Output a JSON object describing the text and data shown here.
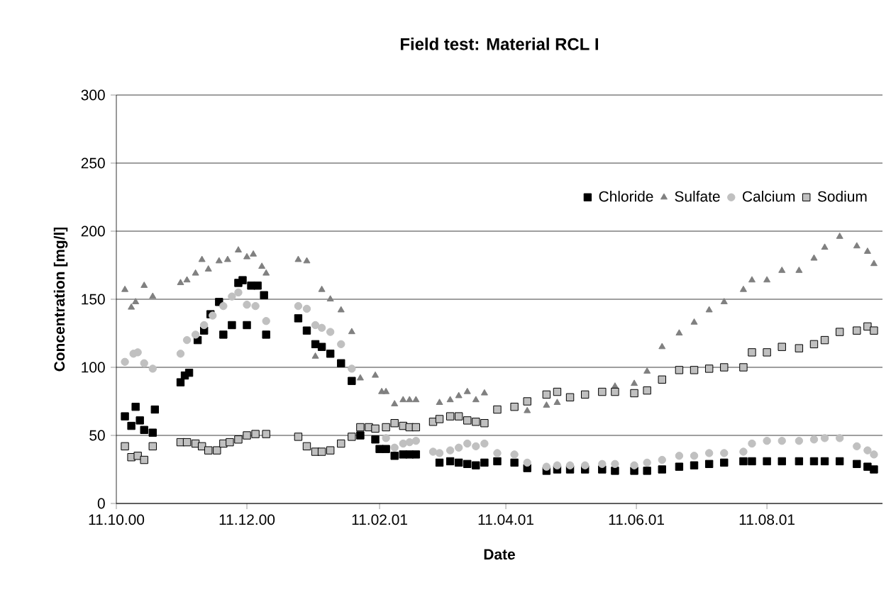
{
  "chart_data": {
    "type": "scatter",
    "title": "Field test: Material RCL I",
    "xlabel": "Date",
    "ylabel": "Concentration [mg/l]",
    "xlim": [
      "2000-10-11",
      "2001-10-04"
    ],
    "ylim": [
      0,
      300
    ],
    "yticks": [
      0,
      50,
      100,
      150,
      200,
      250,
      300
    ],
    "xticks": [
      {
        "value": "2000-10-11",
        "label": "11.10.00"
      },
      {
        "value": "2000-12-11",
        "label": "11.12.00"
      },
      {
        "value": "2001-02-11",
        "label": "11.02.01"
      },
      {
        "value": "2001-04-11",
        "label": "11.04.01"
      },
      {
        "value": "2001-06-11",
        "label": "11.06.01"
      },
      {
        "value": "2001-08-11",
        "label": "11.08.01"
      }
    ],
    "grid": "y",
    "legend": "top right",
    "series": [
      {
        "name": "Chloride",
        "color": "#000000",
        "marker": "square",
        "x": [
          "2000-10-15",
          "2000-10-18",
          "2000-10-20",
          "2000-10-22",
          "2000-10-24",
          "2000-10-28",
          "2000-10-29",
          "2000-11-10",
          "2000-11-12",
          "2000-11-14",
          "2000-11-18",
          "2000-11-21",
          "2000-11-24",
          "2000-11-28",
          "2000-11-30",
          "2000-12-04",
          "2000-12-07",
          "2000-12-09",
          "2000-12-11",
          "2000-12-13",
          "2000-12-16",
          "2000-12-19",
          "2000-12-20",
          "2001-01-04",
          "2001-01-08",
          "2001-01-12",
          "2001-01-15",
          "2001-01-19",
          "2001-01-24",
          "2001-01-29",
          "2001-02-02",
          "2001-02-09",
          "2001-02-11",
          "2001-02-14",
          "2001-02-18",
          "2001-02-22",
          "2001-02-25",
          "2001-02-28",
          "2001-03-11",
          "2001-03-16",
          "2001-03-20",
          "2001-03-24",
          "2001-03-28",
          "2001-04-01",
          "2001-04-07",
          "2001-04-15",
          "2001-04-21",
          "2001-04-30",
          "2001-05-05",
          "2001-05-11",
          "2001-05-18",
          "2001-05-26",
          "2001-06-01",
          "2001-06-10",
          "2001-06-16",
          "2001-06-23",
          "2001-07-01",
          "2001-07-08",
          "2001-07-15",
          "2001-07-22",
          "2001-07-31",
          "2001-08-04",
          "2001-08-11",
          "2001-08-18",
          "2001-08-26",
          "2001-09-02",
          "2001-09-07",
          "2001-09-14",
          "2001-09-22",
          "2001-09-27",
          "2001-09-30"
        ],
        "values": [
          64,
          57,
          71,
          61,
          54,
          52,
          69,
          89,
          94,
          96,
          120,
          127,
          139,
          148,
          124,
          131,
          162,
          164,
          131,
          160,
          160,
          153,
          124,
          136,
          127,
          117,
          115,
          110,
          103,
          90,
          50,
          47,
          40,
          40,
          35,
          36,
          36,
          36,
          30,
          31,
          30,
          29,
          28,
          30,
          31,
          30,
          26,
          24,
          25,
          25,
          25,
          25,
          24,
          24,
          24,
          25,
          27,
          28,
          29,
          30,
          31,
          31,
          31,
          31,
          31,
          31,
          31,
          31,
          29,
          27,
          25
        ]
      },
      {
        "name": "Sulfate",
        "color": "#808080",
        "marker": "triangle",
        "x": [
          "2000-10-15",
          "2000-10-18",
          "2000-10-20",
          "2000-10-24",
          "2000-10-28",
          "2000-11-10",
          "2000-11-13",
          "2000-11-17",
          "2000-11-20",
          "2000-11-23",
          "2000-11-28",
          "2000-12-02",
          "2000-12-07",
          "2000-12-11",
          "2000-12-14",
          "2000-12-18",
          "2000-12-20",
          "2001-01-04",
          "2001-01-08",
          "2001-01-12",
          "2001-01-15",
          "2001-01-19",
          "2001-01-24",
          "2001-01-29",
          "2001-02-02",
          "2001-02-09",
          "2001-02-12",
          "2001-02-14",
          "2001-02-18",
          "2001-02-22",
          "2001-02-25",
          "2001-02-28",
          "2001-03-11",
          "2001-03-16",
          "2001-03-20",
          "2001-03-24",
          "2001-03-28",
          "2001-04-01",
          "2001-04-21",
          "2001-04-30",
          "2001-05-05",
          "2001-06-01",
          "2001-06-10",
          "2001-06-16",
          "2001-06-23",
          "2001-07-01",
          "2001-07-08",
          "2001-07-15",
          "2001-07-22",
          "2001-07-31",
          "2001-08-04",
          "2001-08-11",
          "2001-08-18",
          "2001-08-26",
          "2001-09-02",
          "2001-09-07",
          "2001-09-14",
          "2001-09-22",
          "2001-09-27",
          "2001-09-30"
        ],
        "values": [
          157,
          144,
          148,
          160,
          152,
          162,
          164,
          169,
          179,
          172,
          178,
          179,
          186,
          181,
          183,
          174,
          169,
          179,
          178,
          108,
          157,
          150,
          142,
          126,
          92,
          94,
          82,
          82,
          73,
          76,
          76,
          76,
          74,
          76,
          79,
          82,
          76,
          81,
          68,
          72,
          74,
          86,
          88,
          97,
          115,
          125,
          133,
          142,
          148,
          157,
          164,
          164,
          171,
          171,
          180,
          188,
          196,
          189,
          185,
          176
        ]
      },
      {
        "name": "Calcium",
        "color": "#c0c0c0",
        "marker": "circle",
        "x": [
          "2000-10-15",
          "2000-10-19",
          "2000-10-21",
          "2000-10-24",
          "2000-10-28",
          "2000-11-10",
          "2000-11-13",
          "2000-11-17",
          "2000-11-21",
          "2000-11-25",
          "2000-11-30",
          "2000-12-04",
          "2000-12-07",
          "2000-12-11",
          "2000-12-15",
          "2000-12-20",
          "2001-01-04",
          "2001-01-08",
          "2001-01-12",
          "2001-01-15",
          "2001-01-19",
          "2001-01-24",
          "2001-01-29",
          "2001-02-14",
          "2001-02-18",
          "2001-02-22",
          "2001-02-25",
          "2001-02-28",
          "2001-03-08",
          "2001-03-11",
          "2001-03-16",
          "2001-03-20",
          "2001-03-24",
          "2001-03-28",
          "2001-04-01",
          "2001-04-07",
          "2001-04-15",
          "2001-04-21",
          "2001-04-30",
          "2001-05-05",
          "2001-05-11",
          "2001-05-18",
          "2001-05-26",
          "2001-06-01",
          "2001-06-10",
          "2001-06-16",
          "2001-06-23",
          "2001-07-01",
          "2001-07-08",
          "2001-07-15",
          "2001-07-22",
          "2001-07-31",
          "2001-08-04",
          "2001-08-11",
          "2001-08-18",
          "2001-08-26",
          "2001-09-02",
          "2001-09-07",
          "2001-09-14",
          "2001-09-22",
          "2001-09-27",
          "2001-09-30"
        ],
        "values": [
          104,
          110,
          111,
          103,
          99,
          110,
          120,
          124,
          131,
          138,
          145,
          152,
          155,
          146,
          145,
          134,
          145,
          143,
          131,
          129,
          126,
          117,
          99,
          48,
          41,
          44,
          45,
          46,
          38,
          37,
          39,
          41,
          44,
          42,
          44,
          37,
          36,
          30,
          27,
          28,
          28,
          28,
          29,
          29,
          28,
          30,
          32,
          35,
          35,
          37,
          37,
          38,
          44,
          46,
          46,
          46,
          47,
          48,
          48,
          42,
          39,
          36
        ]
      },
      {
        "name": "Sodium",
        "color": "#c0c0c0",
        "marker": "square",
        "x": [
          "2000-10-15",
          "2000-10-18",
          "2000-10-21",
          "2000-10-24",
          "2000-10-28",
          "2000-11-10",
          "2000-11-13",
          "2000-11-17",
          "2000-11-20",
          "2000-11-23",
          "2000-11-27",
          "2000-11-30",
          "2000-12-03",
          "2000-12-07",
          "2000-12-11",
          "2000-12-15",
          "2000-12-20",
          "2001-01-04",
          "2001-01-08",
          "2001-01-12",
          "2001-01-15",
          "2001-01-19",
          "2001-01-24",
          "2001-01-29",
          "2001-02-02",
          "2001-02-06",
          "2001-02-09",
          "2001-02-14",
          "2001-02-18",
          "2001-02-22",
          "2001-02-25",
          "2001-02-28",
          "2001-03-08",
          "2001-03-11",
          "2001-03-16",
          "2001-03-20",
          "2001-03-24",
          "2001-03-28",
          "2001-04-01",
          "2001-04-07",
          "2001-04-15",
          "2001-04-21",
          "2001-04-30",
          "2001-05-05",
          "2001-05-11",
          "2001-05-18",
          "2001-05-26",
          "2001-06-01",
          "2001-06-10",
          "2001-06-16",
          "2001-06-23",
          "2001-07-01",
          "2001-07-08",
          "2001-07-15",
          "2001-07-22",
          "2001-07-31",
          "2001-08-04",
          "2001-08-11",
          "2001-08-18",
          "2001-08-26",
          "2001-09-02",
          "2001-09-07",
          "2001-09-14",
          "2001-09-22",
          "2001-09-27",
          "2001-09-30"
        ],
        "values": [
          42,
          34,
          35,
          32,
          42,
          45,
          45,
          44,
          42,
          39,
          39,
          44,
          45,
          47,
          50,
          51,
          51,
          49,
          42,
          38,
          38,
          39,
          44,
          49,
          56,
          56,
          55,
          56,
          59,
          57,
          56,
          56,
          60,
          62,
          64,
          64,
          61,
          60,
          59,
          69,
          71,
          75,
          80,
          82,
          78,
          80,
          82,
          82,
          81,
          83,
          91,
          98,
          98,
          99,
          100,
          100,
          111,
          111,
          115,
          114,
          117,
          120,
          126,
          127,
          130,
          127
        ]
      }
    ]
  }
}
